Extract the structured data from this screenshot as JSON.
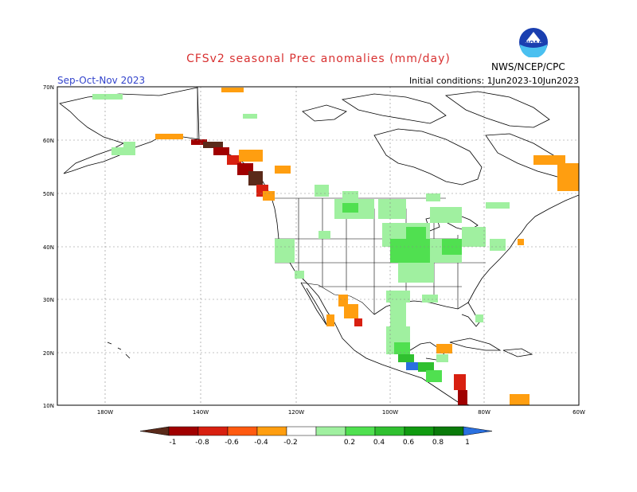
{
  "header": {
    "title": "CFSv2 seasonal Prec anomalies (mm/day)",
    "season": "Sep-Oct-Nov 2023",
    "initial_conditions": "Initial conditions: 1Jun2023-10Jun2023",
    "agency": "NWS/NCEP/CPC",
    "logo_text": "NOAA"
  },
  "map": {
    "lat_labels": [
      "70N",
      "60N",
      "50N",
      "40N",
      "30N",
      "20N",
      "10N"
    ],
    "lon_labels": [
      "180W",
      "140W",
      "120W",
      "100W",
      "80W",
      "60W"
    ]
  },
  "colorbar": {
    "labels": [
      "-1",
      "-0.8",
      "-0.6",
      "-0.4",
      "-0.2",
      "0.2",
      "0.4",
      "0.6",
      "0.8",
      "1"
    ],
    "colors": [
      "#5a2a1a",
      "#a00000",
      "#d82010",
      "#ff5a10",
      "#ff9e10",
      "#ffffff",
      "#a0f0a0",
      "#50e050",
      "#30c030",
      "#109a10",
      "#0a7a0a",
      "#2a70e0"
    ]
  }
}
